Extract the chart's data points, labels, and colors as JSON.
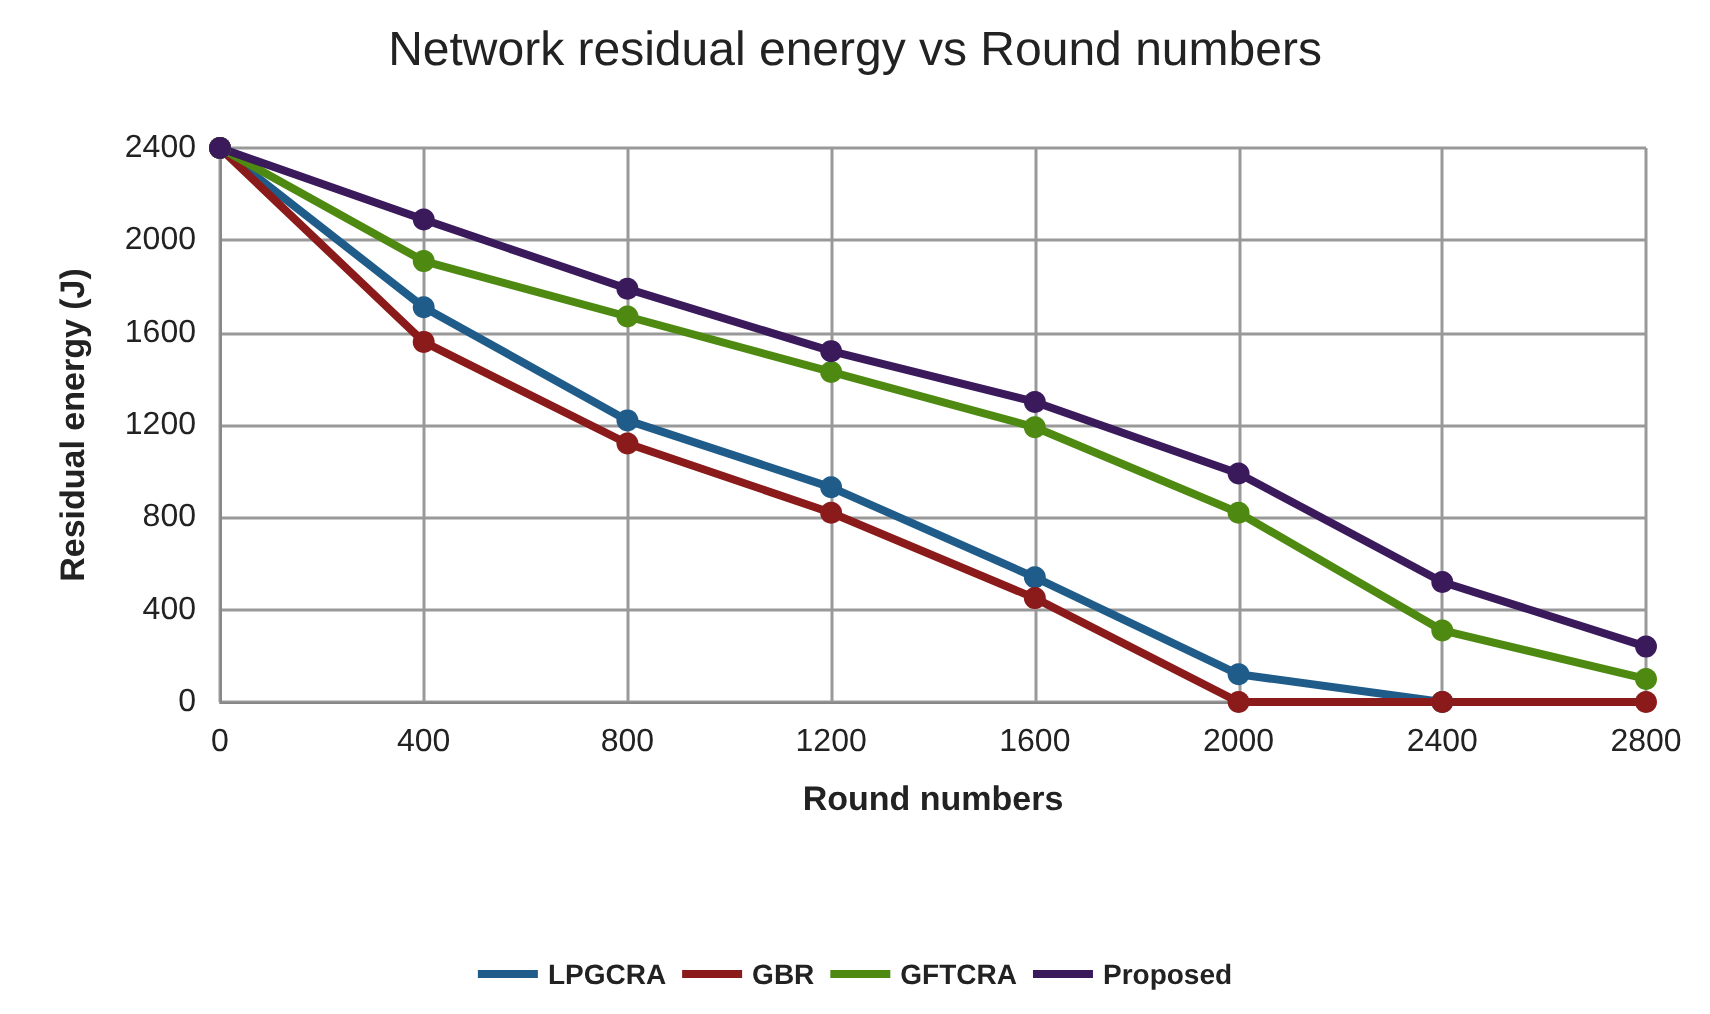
{
  "chart_data": {
    "type": "line",
    "title": "Network residual energy vs Round numbers",
    "xlabel": "Round numbers",
    "ylabel": "Residual energy (J)",
    "x": [
      0,
      400,
      800,
      1200,
      1600,
      2000,
      2400,
      2800
    ],
    "series": [
      {
        "name": "LPGCRA",
        "color": "#1f5c8a",
        "values": [
          2400,
          1710,
          1220,
          930,
          540,
          120,
          0,
          null
        ]
      },
      {
        "name": "GBR",
        "color": "#8b1a1a",
        "values": [
          2400,
          1560,
          1120,
          820,
          450,
          0,
          0,
          0
        ]
      },
      {
        "name": "GFTCRA",
        "color": "#4e8a12",
        "values": [
          2400,
          1910,
          1670,
          1430,
          1190,
          820,
          310,
          100
        ]
      },
      {
        "name": "Proposed",
        "color": "#3b1a5c",
        "values": [
          2400,
          2090,
          1790,
          1520,
          1300,
          990,
          520,
          240
        ]
      }
    ],
    "xlim": [
      0,
      2800
    ],
    "xticks": [
      0,
      400,
      800,
      1200,
      1600,
      2000,
      2400,
      2800
    ],
    "ylim": [
      0,
      2400
    ],
    "yticks": [
      0,
      400,
      800,
      1200,
      1600,
      2000,
      2400
    ],
    "grid": true,
    "legend": "bottom",
    "marker": "circle",
    "line_style": "solid"
  }
}
